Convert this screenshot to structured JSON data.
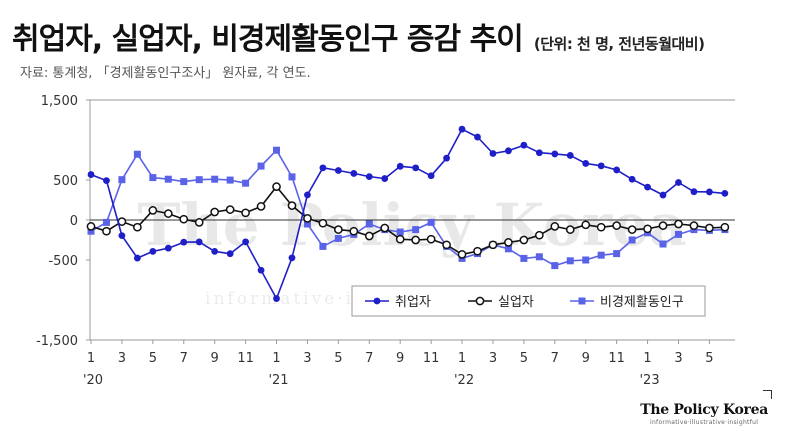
{
  "header": {
    "title": "취업자, 실업자, 비경제활동인구 증감 추이",
    "unit": "(단위: 천 명, 전년동월대비)",
    "source": "자료: 통계청, 「경제활동인구조사」 원자료, 각 연도."
  },
  "watermark": {
    "main": "The Policy Korea",
    "sub": "informative·illustrative·insightful"
  },
  "brand": {
    "name": "The Policy Korea",
    "tagline": "informative·illustrative·insightful"
  },
  "colors": {
    "employed": "#1f1fc8",
    "unemployed": "#111111",
    "inactive": "#5a63e8",
    "axis": "#999999"
  },
  "chart_data": {
    "type": "line",
    "x_tick_labels": [
      "1",
      "3",
      "5",
      "7",
      "9",
      "11",
      "1",
      "3",
      "5",
      "7",
      "9",
      "11",
      "1",
      "3",
      "5",
      "7",
      "9",
      "11",
      "1",
      "3",
      "5"
    ],
    "year_labels": [
      {
        "label": "'20",
        "month_index": 0
      },
      {
        "label": "'21",
        "month_index": 12
      },
      {
        "label": "'22",
        "month_index": 24
      },
      {
        "label": "'23",
        "month_index": 36
      }
    ],
    "y_ticks": [
      1500,
      500,
      0,
      -500,
      -1500
    ],
    "y_tick_labels": [
      "1,500",
      "500",
      "0",
      "-500",
      "-1,500"
    ],
    "ylim": [
      -1500,
      1500
    ],
    "series": [
      {
        "name": "취업자",
        "marker": "circle-filled",
        "values": [
          568,
          492,
          -195,
          -476,
          -392,
          -352,
          -277,
          -274,
          -392,
          -421,
          -273,
          -628,
          -982,
          -473,
          314,
          652,
          619,
          582,
          542,
          518,
          671,
          652,
          553,
          773,
          1135,
          1037,
          831,
          865,
          935,
          841,
          826,
          807,
          707,
          677,
          626,
          509,
          411,
          312,
          469,
          354,
          351,
          333
        ]
      },
      {
        "name": "실업자",
        "marker": "circle-open",
        "values": [
          -80,
          -140,
          -20,
          -90,
          120,
          80,
          10,
          -30,
          100,
          130,
          90,
          170,
          417,
          180,
          20,
          -40,
          -120,
          -140,
          -200,
          -100,
          -240,
          -250,
          -240,
          -310,
          -430,
          -390,
          -310,
          -280,
          -250,
          -190,
          -80,
          -120,
          -60,
          -90,
          -70,
          -120,
          -110,
          -70,
          -50,
          -70,
          -100,
          -90
        ]
      },
      {
        "name": "비경제활동인구",
        "marker": "square",
        "values": [
          -140,
          -30,
          504,
          822,
          530,
          510,
          480,
          504,
          510,
          499,
          460,
          674,
          872,
          539,
          -50,
          -330,
          -230,
          -180,
          -50,
          -120,
          -150,
          -120,
          -30,
          -330,
          -480,
          -420,
          -310,
          -360,
          -480,
          -460,
          -570,
          -510,
          -500,
          -440,
          -420,
          -250,
          -160,
          -300,
          -180,
          -120,
          -130,
          -120
        ]
      }
    ]
  }
}
